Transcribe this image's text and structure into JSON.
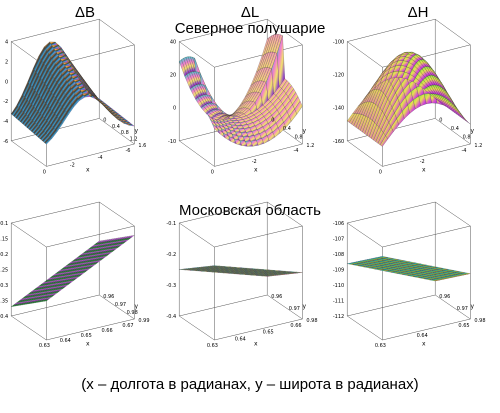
{
  "column_titles": [
    "ΔB",
    "ΔL",
    "ΔH"
  ],
  "section_titles": [
    "Северное полушарие",
    "Московская область"
  ],
  "footer": "(x – долгота в радианах, y – широта в радианах)",
  "plots": [
    {
      "id": "north-dB",
      "surface": "ridge-colorful",
      "axis_labels": {
        "x": "x",
        "y": "y"
      },
      "z_ticks": [
        "4",
        "2",
        "0",
        "-2",
        "-4",
        "-6"
      ],
      "x_ticks": [
        "0",
        "-2",
        "-4",
        "-6"
      ],
      "y_ticks": [
        "0",
        "0.4",
        "0.8",
        "1.2",
        "1.6"
      ]
    },
    {
      "id": "north-dL",
      "surface": "saddle-colorful",
      "axis_labels": {
        "x": "x",
        "y": "y"
      },
      "z_ticks": [
        "40",
        "20",
        "0",
        "-10"
      ],
      "x_ticks": [
        "0",
        "-2",
        "-4"
      ],
      "y_ticks": [
        "0",
        "0.4",
        "0.8",
        "1.2"
      ]
    },
    {
      "id": "north-dH",
      "surface": "dome-green-pink",
      "axis_labels": {
        "x": "x",
        "y": "y"
      },
      "z_ticks": [
        "-100",
        "-120",
        "-140",
        "-160"
      ],
      "x_ticks": [
        "0",
        "-2",
        "-4"
      ],
      "y_ticks": [
        "0",
        "0.4",
        "0.8",
        "1.2"
      ]
    },
    {
      "id": "moscow-dB",
      "surface": "plane-green-pink",
      "axis_labels": {
        "x": "x",
        "y": "y"
      },
      "z_ticks": [
        "-0.1",
        "-0.15",
        "-0.2",
        "-0.25",
        "-0.3",
        "-0.35",
        "-0.4"
      ],
      "x_ticks": [
        "0.63",
        "0.64",
        "0.65",
        "0.66",
        "0.67"
      ],
      "y_ticks": [
        "0.96",
        "0.97",
        "0.98",
        "0.99"
      ]
    },
    {
      "id": "moscow-dL",
      "surface": "plane-spectrum",
      "axis_labels": {
        "x": "x",
        "y": "y"
      },
      "z_ticks": [
        "-0.1",
        "-0.2",
        "-0.3",
        "-0.4"
      ],
      "x_ticks": [
        "0.63",
        "0.64",
        "0.65",
        "0.66"
      ],
      "y_ticks": [
        "0.96",
        "0.97",
        "0.98"
      ]
    },
    {
      "id": "moscow-dH",
      "surface": "plane-spectrum-2",
      "axis_labels": {
        "x": "x",
        "y": "y"
      },
      "z_ticks": [
        "-106",
        "-107",
        "-108",
        "-109",
        "-110",
        "-111",
        "-112"
      ],
      "x_ticks": [
        "0.63",
        "0.64",
        "0.65"
      ],
      "y_ticks": [
        "0.96",
        "0.97",
        "0.98"
      ]
    }
  ]
}
